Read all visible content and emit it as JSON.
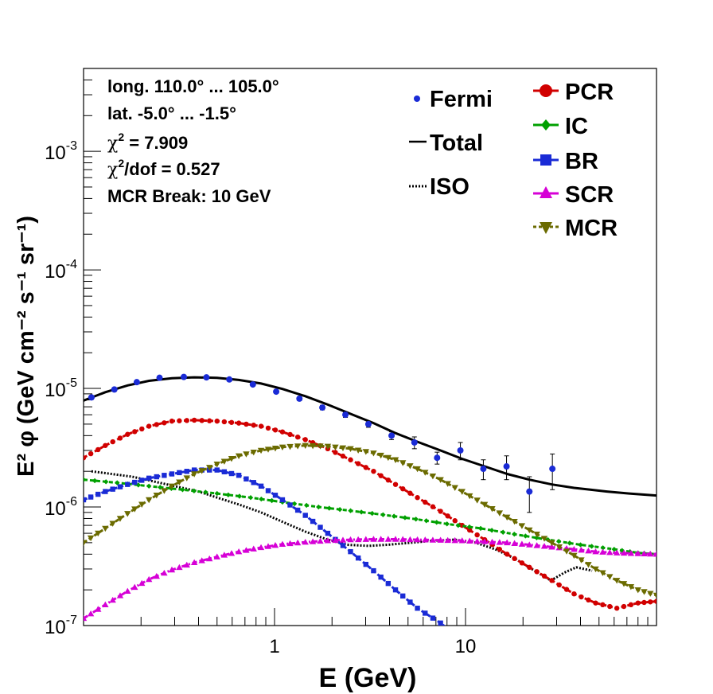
{
  "chart_data": {
    "type": "line",
    "xlabel": "E (GeV)",
    "ylabel": "E² φ (GeV cm⁻² s⁻¹ sr⁻¹)",
    "x_scale": "log",
    "y_scale": "log",
    "xlim": [
      0.1,
      100
    ],
    "ylim": [
      1e-07,
      0.005
    ],
    "x_tick_labels": [
      {
        "value": 1,
        "label": "1"
      },
      {
        "value": 10,
        "label": "10"
      }
    ],
    "y_tick_labels": [
      {
        "value": 1e-07,
        "mant": "10",
        "exp": "-7"
      },
      {
        "value": 1e-06,
        "mant": "10",
        "exp": "-6"
      },
      {
        "value": 1e-05,
        "mant": "10",
        "exp": "-5"
      },
      {
        "value": 0.0001,
        "mant": "10",
        "exp": "-4"
      },
      {
        "value": 0.001,
        "mant": "10",
        "exp": "-3"
      }
    ],
    "annotations": {
      "lon": "long. 110.0° ... 105.0°",
      "lat": "lat. -5.0° ... -1.5°",
      "chi2_sym": "χ",
      "chi2_sup": "2",
      "chi2_val": " = 7.909",
      "chi2dof_sym": "χ",
      "chi2dof_sup": "2",
      "chi2dof_val": "/dof = 0.527",
      "break": "MCR Break: 10 GeV"
    },
    "legend_position": "top-right",
    "fermi": {
      "name": "Fermi",
      "color": "#1a2bd6",
      "points": [
        {
          "x": 0.11,
          "y": 8.4e-06,
          "err": 3e-07
        },
        {
          "x": 0.145,
          "y": 9.8e-06,
          "err": 3e-07
        },
        {
          "x": 0.19,
          "y": 1.13e-05,
          "err": 3e-07
        },
        {
          "x": 0.25,
          "y": 1.23e-05,
          "err": 3e-07
        },
        {
          "x": 0.335,
          "y": 1.25e-05,
          "err": 3e-07
        },
        {
          "x": 0.44,
          "y": 1.24e-05,
          "err": 3e-07
        },
        {
          "x": 0.58,
          "y": 1.19e-05,
          "err": 3e-07
        },
        {
          "x": 0.77,
          "y": 1.08e-05,
          "err": 3e-07
        },
        {
          "x": 1.02,
          "y": 9.4e-06,
          "err": 3e-07
        },
        {
          "x": 1.35,
          "y": 8.2e-06,
          "err": 3e-07
        },
        {
          "x": 1.78,
          "y": 6.9e-06,
          "err": 3e-07
        },
        {
          "x": 2.35,
          "y": 6e-06,
          "err": 3e-07
        },
        {
          "x": 3.1,
          "y": 5e-06,
          "err": 3e-07
        },
        {
          "x": 4.1,
          "y": 4e-06,
          "err": 3e-07
        },
        {
          "x": 5.4,
          "y": 3.5e-06,
          "err": 4e-07
        },
        {
          "x": 7.1,
          "y": 2.6e-06,
          "err": 3e-07
        },
        {
          "x": 9.4,
          "y": 3e-06,
          "err": 5e-07
        },
        {
          "x": 12.4,
          "y": 2.1e-06,
          "err": 4e-07
        },
        {
          "x": 16.4,
          "y": 2.2e-06,
          "err": 5e-07
        },
        {
          "x": 21.6,
          "y": 1.35e-06,
          "err": 4.5e-07
        },
        {
          "x": 28.5,
          "y": 2.1e-06,
          "err": 7e-07
        }
      ]
    },
    "series": [
      {
        "name": "Total",
        "color": "#000000",
        "dash": "solid",
        "marker": "none",
        "points": [
          [
            0.1,
            7.9e-06
          ],
          [
            0.13,
            9.3e-06
          ],
          [
            0.17,
            1.06e-05
          ],
          [
            0.22,
            1.16e-05
          ],
          [
            0.29,
            1.22e-05
          ],
          [
            0.38,
            1.24e-05
          ],
          [
            0.5,
            1.23e-05
          ],
          [
            0.65,
            1.18e-05
          ],
          [
            0.85,
            1.1e-05
          ],
          [
            1.1,
            9.9e-06
          ],
          [
            1.45,
            8.6e-06
          ],
          [
            1.9,
            7.3e-06
          ],
          [
            2.5,
            6.1e-06
          ],
          [
            3.3,
            5.1e-06
          ],
          [
            4.3,
            4.2e-06
          ],
          [
            5.6,
            3.55e-06
          ],
          [
            7.4,
            3e-06
          ],
          [
            9.6,
            2.55e-06
          ],
          [
            12.6,
            2.2e-06
          ],
          [
            16.5,
            1.9e-06
          ],
          [
            21.6,
            1.7e-06
          ],
          [
            28.3,
            1.55e-06
          ],
          [
            37,
            1.45e-06
          ],
          [
            45,
            1.4e-06
          ],
          [
            55,
            1.35e-06
          ],
          [
            72,
            1.3e-06
          ],
          [
            100,
            1.25e-06
          ]
        ]
      },
      {
        "name": "ISO",
        "color": "#000000",
        "dash": "dotted",
        "marker": "none",
        "points": [
          [
            0.11,
            2e-06
          ],
          [
            0.14,
            1.9e-06
          ],
          [
            0.18,
            1.8e-06
          ],
          [
            0.23,
            1.65e-06
          ],
          [
            0.3,
            1.5e-06
          ],
          [
            0.4,
            1.35e-06
          ],
          [
            0.5,
            1.2e-06
          ],
          [
            0.65,
            1.05e-06
          ],
          [
            0.85,
            9e-07
          ],
          [
            1.1,
            7.5e-07
          ],
          [
            1.45,
            6.2e-07
          ],
          [
            1.9,
            5.3e-07
          ],
          [
            2.4,
            4.8e-07
          ],
          [
            3.1,
            4.7e-07
          ],
          [
            3.9,
            4.8e-07
          ],
          [
            5.2,
            5e-07
          ],
          [
            6.8,
            5.2e-07
          ],
          [
            8.8,
            5.3e-07
          ],
          [
            11.3,
            5e-07
          ],
          [
            14.3,
            4.4e-07
          ],
          [
            18,
            3.7e-07
          ],
          [
            23,
            2.9e-07
          ],
          [
            28,
            2.4e-07
          ],
          [
            33,
            2.8e-07
          ],
          [
            38,
            3.1e-07
          ],
          [
            46,
            2.9e-07
          ]
        ]
      },
      {
        "name": "PCR",
        "color": "#d10000",
        "dash": "dashed",
        "marker": "circle",
        "points": [
          [
            0.1,
            2.6e-06
          ],
          [
            0.13,
            3.3e-06
          ],
          [
            0.17,
            4.1e-06
          ],
          [
            0.22,
            4.8e-06
          ],
          [
            0.29,
            5.3e-06
          ],
          [
            0.38,
            5.4e-06
          ],
          [
            0.5,
            5.3e-06
          ],
          [
            0.65,
            5.1e-06
          ],
          [
            0.85,
            4.8e-06
          ],
          [
            1.1,
            4.3e-06
          ],
          [
            1.45,
            3.7e-06
          ],
          [
            1.9,
            3.1e-06
          ],
          [
            2.5,
            2.5e-06
          ],
          [
            3.3,
            2e-06
          ],
          [
            4.3,
            1.55e-06
          ],
          [
            5.6,
            1.2e-06
          ],
          [
            7.4,
            9.2e-07
          ],
          [
            9.6,
            7e-07
          ],
          [
            12.6,
            5.3e-07
          ],
          [
            16.5,
            4e-07
          ],
          [
            21.6,
            3.1e-07
          ],
          [
            28.3,
            2.4e-07
          ],
          [
            37,
            1.85e-07
          ],
          [
            48,
            1.55e-07
          ],
          [
            62,
            1.4e-07
          ],
          [
            80,
            1.55e-07
          ],
          [
            100,
            1.6e-07
          ]
        ]
      },
      {
        "name": "IC",
        "color": "#00a000",
        "dash": "dashed",
        "marker": "diamond",
        "points": [
          [
            0.1,
            1.7e-06
          ],
          [
            0.15,
            1.6e-06
          ],
          [
            0.22,
            1.5e-06
          ],
          [
            0.33,
            1.4e-06
          ],
          [
            0.5,
            1.3e-06
          ],
          [
            0.75,
            1.2e-06
          ],
          [
            1.1,
            1.1e-06
          ],
          [
            1.7,
            1e-06
          ],
          [
            2.5,
            9.3e-07
          ],
          [
            3.7,
            8.6e-07
          ],
          [
            5.5,
            7.9e-07
          ],
          [
            8,
            7.2e-07
          ],
          [
            12,
            6.6e-07
          ],
          [
            18,
            5.9e-07
          ],
          [
            27,
            5.3e-07
          ],
          [
            40,
            4.8e-07
          ],
          [
            60,
            4.4e-07
          ],
          [
            80,
            4.1e-07
          ],
          [
            100,
            4e-07
          ]
        ]
      },
      {
        "name": "BR",
        "color": "#1a2bd6",
        "dash": "dashed",
        "marker": "square",
        "points": [
          [
            0.1,
            1.15e-06
          ],
          [
            0.13,
            1.35e-06
          ],
          [
            0.17,
            1.55e-06
          ],
          [
            0.22,
            1.75e-06
          ],
          [
            0.29,
            1.9e-06
          ],
          [
            0.38,
            2.05e-06
          ],
          [
            0.5,
            2.05e-06
          ],
          [
            0.65,
            1.85e-06
          ],
          [
            0.85,
            1.5e-06
          ],
          [
            1.1,
            1.15e-06
          ],
          [
            1.45,
            8.5e-07
          ],
          [
            1.9,
            6e-07
          ],
          [
            2.5,
            4.2e-07
          ],
          [
            3.3,
            2.9e-07
          ],
          [
            4.3,
            2e-07
          ],
          [
            5.6,
            1.4e-07
          ],
          [
            7.4,
            1.05e-07
          ],
          [
            9.6,
            7.5e-08
          ]
        ]
      },
      {
        "name": "SCR",
        "color": "#d600d6",
        "dash": "dashdot",
        "marker": "triangle-up",
        "points": [
          [
            0.1,
            1.15e-07
          ],
          [
            0.13,
            1.5e-07
          ],
          [
            0.17,
            1.95e-07
          ],
          [
            0.22,
            2.45e-07
          ],
          [
            0.29,
            2.95e-07
          ],
          [
            0.38,
            3.4e-07
          ],
          [
            0.5,
            3.8e-07
          ],
          [
            0.65,
            4.2e-07
          ],
          [
            0.85,
            4.55e-07
          ],
          [
            1.1,
            4.85e-07
          ],
          [
            1.45,
            5.05e-07
          ],
          [
            1.9,
            5.2e-07
          ],
          [
            2.5,
            5.3e-07
          ],
          [
            3.3,
            5.35e-07
          ],
          [
            4.3,
            5.35e-07
          ],
          [
            5.6,
            5.3e-07
          ],
          [
            7.4,
            5.25e-07
          ],
          [
            9.6,
            5.2e-07
          ],
          [
            12.6,
            5.1e-07
          ],
          [
            16.5,
            5e-07
          ],
          [
            21.6,
            4.8e-07
          ],
          [
            28.3,
            4.6e-07
          ],
          [
            37,
            4.4e-07
          ],
          [
            48,
            4.2e-07
          ],
          [
            62,
            4.1e-07
          ],
          [
            80,
            4.05e-07
          ],
          [
            100,
            4e-07
          ]
        ]
      },
      {
        "name": "MCR",
        "color": "#6b6b00",
        "dash": "dashed",
        "marker": "triangle-down",
        "points": [
          [
            0.1,
            5e-07
          ],
          [
            0.13,
            6.6e-07
          ],
          [
            0.17,
            8.8e-07
          ],
          [
            0.22,
            1.15e-06
          ],
          [
            0.29,
            1.5e-06
          ],
          [
            0.38,
            1.9e-06
          ],
          [
            0.5,
            2.3e-06
          ],
          [
            0.65,
            2.7e-06
          ],
          [
            0.85,
            3e-06
          ],
          [
            1.1,
            3.2e-06
          ],
          [
            1.45,
            3.3e-06
          ],
          [
            1.9,
            3.25e-06
          ],
          [
            2.5,
            3.1e-06
          ],
          [
            3.3,
            2.85e-06
          ],
          [
            4.3,
            2.5e-06
          ],
          [
            5.6,
            2.1e-06
          ],
          [
            7.4,
            1.7e-06
          ],
          [
            9.6,
            1.35e-06
          ],
          [
            12.6,
            1.05e-06
          ],
          [
            16.5,
            8.2e-07
          ],
          [
            21.6,
            6.4e-07
          ],
          [
            28.3,
            5e-07
          ],
          [
            37,
            3.9e-07
          ],
          [
            48,
            3e-07
          ],
          [
            62,
            2.4e-07
          ],
          [
            80,
            2e-07
          ],
          [
            100,
            1.8e-07
          ]
        ]
      }
    ]
  }
}
